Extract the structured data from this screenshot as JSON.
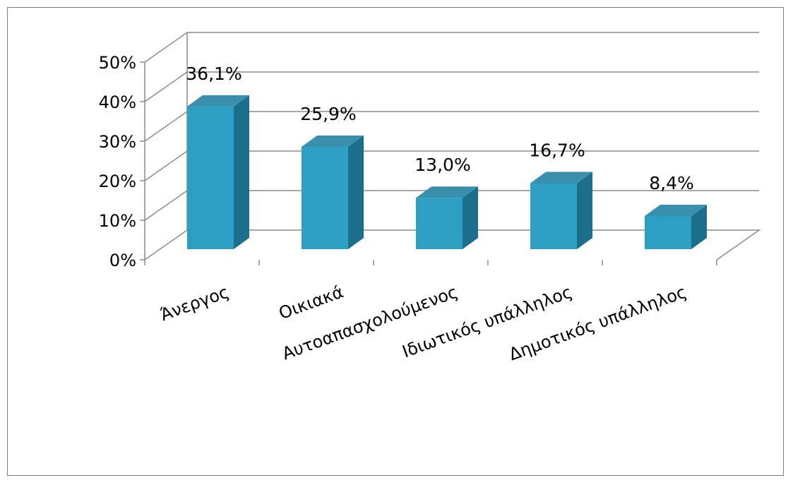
{
  "chart_data": {
    "type": "bar",
    "style": "3d-column",
    "categories": [
      "Άνεργος",
      "Οικιακά",
      "Αυτοαπασχολούμενος",
      "Ιδιωτικός υπάλληλος",
      "Δημοτικός υπάλληλος"
    ],
    "values": [
      36.1,
      25.9,
      13.0,
      16.7,
      8.4
    ],
    "data_labels": [
      "36,1%",
      "25,9%",
      "13,0%",
      "16,7%",
      "8,4%"
    ],
    "y_ticks": [
      "0%",
      "10%",
      "20%",
      "30%",
      "40%",
      "50%"
    ],
    "ylim": [
      0,
      50
    ],
    "grid": true,
    "legend": "none",
    "bar_color": "#2e9fc4",
    "bar_side_color": "#1b6f8c",
    "bar_top_color": "#3a8fad"
  }
}
